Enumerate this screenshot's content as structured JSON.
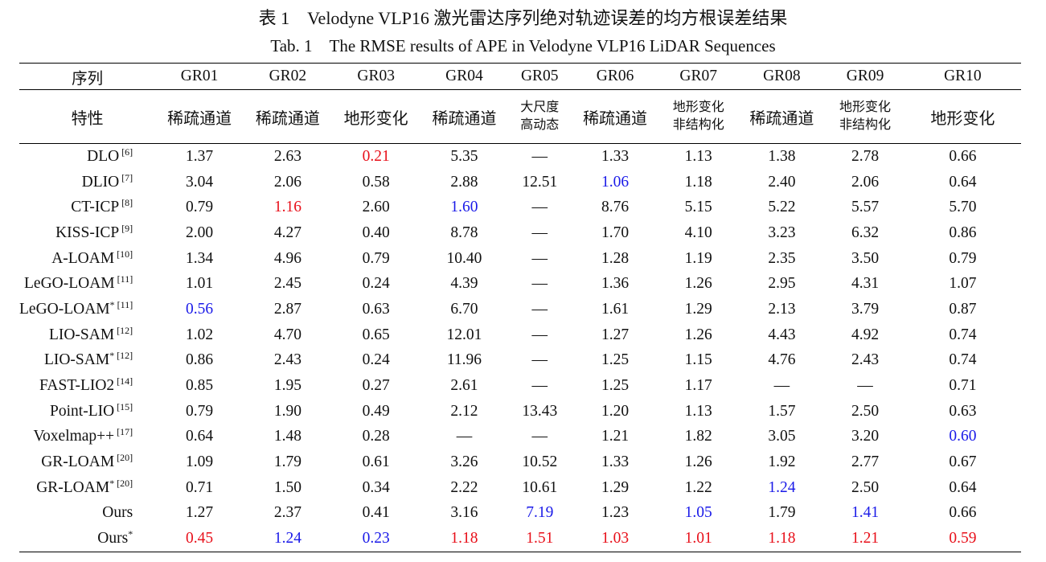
{
  "caption_cn": "表 1　Velodyne VLP16 激光雷达序列绝对轨迹误差的均方根误差结果",
  "caption_en": "Tab. 1　The RMSE results of APE in Velodyne VLP16 LiDAR Sequences",
  "header": {
    "row1_label": "序列",
    "sequences": [
      "GR01",
      "GR02",
      "GR03",
      "GR04",
      "GR05",
      "GR06",
      "GR07",
      "GR08",
      "GR09",
      "GR10"
    ],
    "row2_label": "特性",
    "properties": [
      [
        "稀疏通道"
      ],
      [
        "稀疏通道"
      ],
      [
        "地形变化"
      ],
      [
        "稀疏通道"
      ],
      [
        "大尺度",
        "高动态"
      ],
      [
        "稀疏通道"
      ],
      [
        "地形变化",
        "非结构化"
      ],
      [
        "稀疏通道"
      ],
      [
        "地形变化",
        "非结构化"
      ],
      [
        "地形变化"
      ]
    ]
  },
  "colors": {
    "best": "#e8101a",
    "second": "#1a1ae8"
  },
  "rows": [
    {
      "method": "DLO",
      "ref": "[6]",
      "values": [
        "1.37",
        "2.63",
        "0.21",
        "5.35",
        "—",
        "1.33",
        "1.13",
        "1.38",
        "2.78",
        "0.66"
      ],
      "marks": [
        "",
        "",
        "r",
        "",
        "",
        "",
        "",
        "",
        "",
        ""
      ]
    },
    {
      "method": "DLIO",
      "ref": "[7]",
      "values": [
        "3.04",
        "2.06",
        "0.58",
        "2.88",
        "12.51",
        "1.06",
        "1.18",
        "2.40",
        "2.06",
        "0.64"
      ],
      "marks": [
        "",
        "",
        "",
        "",
        "",
        "b",
        "",
        "",
        "",
        ""
      ]
    },
    {
      "method": "CT-ICP",
      "ref": "[8]",
      "values": [
        "0.79",
        "1.16",
        "2.60",
        "1.60",
        "—",
        "8.76",
        "5.15",
        "5.22",
        "5.57",
        "5.70"
      ],
      "marks": [
        "",
        "r",
        "",
        "b",
        "",
        "",
        "",
        "",
        "",
        ""
      ]
    },
    {
      "method": "KISS-ICP",
      "ref": "[9]",
      "values": [
        "2.00",
        "4.27",
        "0.40",
        "8.78",
        "—",
        "1.70",
        "4.10",
        "3.23",
        "6.32",
        "0.86"
      ],
      "marks": [
        "",
        "",
        "",
        "",
        "",
        "",
        "",
        "",
        "",
        ""
      ]
    },
    {
      "method": "A-LOAM",
      "ref": "[10]",
      "values": [
        "1.34",
        "4.96",
        "0.79",
        "10.40",
        "—",
        "1.28",
        "1.19",
        "2.35",
        "3.50",
        "0.79"
      ],
      "marks": [
        "",
        "",
        "",
        "",
        "",
        "",
        "",
        "",
        "",
        ""
      ]
    },
    {
      "method": "LeGO-LOAM",
      "ref": "[11]",
      "values": [
        "1.01",
        "2.45",
        "0.24",
        "4.39",
        "—",
        "1.36",
        "1.26",
        "2.95",
        "4.31",
        "1.07"
      ],
      "marks": [
        "",
        "",
        "",
        "",
        "",
        "",
        "",
        "",
        "",
        ""
      ]
    },
    {
      "method": "LeGO-LOAM*",
      "ref": "[11]",
      "values": [
        "0.56",
        "2.87",
        "0.63",
        "6.70",
        "—",
        "1.61",
        "1.29",
        "2.13",
        "3.79",
        "0.87"
      ],
      "marks": [
        "b",
        "",
        "",
        "",
        "",
        "",
        "",
        "",
        "",
        ""
      ]
    },
    {
      "method": "LIO-SAM",
      "ref": "[12]",
      "values": [
        "1.02",
        "4.70",
        "0.65",
        "12.01",
        "—",
        "1.27",
        "1.26",
        "4.43",
        "4.92",
        "0.74"
      ],
      "marks": [
        "",
        "",
        "",
        "",
        "",
        "",
        "",
        "",
        "",
        ""
      ]
    },
    {
      "method": "LIO-SAM*",
      "ref": "[12]",
      "values": [
        "0.86",
        "2.43",
        "0.24",
        "11.96",
        "—",
        "1.25",
        "1.15",
        "4.76",
        "2.43",
        "0.74"
      ],
      "marks": [
        "",
        "",
        "",
        "",
        "",
        "",
        "",
        "",
        "",
        ""
      ]
    },
    {
      "method": "FAST-LIO2",
      "ref": "[14]",
      "values": [
        "0.85",
        "1.95",
        "0.27",
        "2.61",
        "—",
        "1.25",
        "1.17",
        "—",
        "—",
        "0.71"
      ],
      "marks": [
        "",
        "",
        "",
        "",
        "",
        "",
        "",
        "",
        "",
        ""
      ]
    },
    {
      "method": "Point-LIO",
      "ref": "[15]",
      "values": [
        "0.79",
        "1.90",
        "0.49",
        "2.12",
        "13.43",
        "1.20",
        "1.13",
        "1.57",
        "2.50",
        "0.63"
      ],
      "marks": [
        "",
        "",
        "",
        "",
        "",
        "",
        "",
        "",
        "",
        ""
      ]
    },
    {
      "method": "Voxelmap++",
      "ref": "[17]",
      "values": [
        "0.64",
        "1.48",
        "0.28",
        "—",
        "—",
        "1.21",
        "1.82",
        "3.05",
        "3.20",
        "0.60"
      ],
      "marks": [
        "",
        "",
        "",
        "",
        "",
        "",
        "",
        "",
        "",
        "b"
      ]
    },
    {
      "method": "GR-LOAM",
      "ref": "[20]",
      "values": [
        "1.09",
        "1.79",
        "0.61",
        "3.26",
        "10.52",
        "1.33",
        "1.26",
        "1.92",
        "2.77",
        "0.67"
      ],
      "marks": [
        "",
        "",
        "",
        "",
        "",
        "",
        "",
        "",
        "",
        ""
      ]
    },
    {
      "method": "GR-LOAM*",
      "ref": "[20]",
      "values": [
        "0.71",
        "1.50",
        "0.34",
        "2.22",
        "10.61",
        "1.29",
        "1.22",
        "1.24",
        "2.50",
        "0.64"
      ],
      "marks": [
        "",
        "",
        "",
        "",
        "",
        "",
        "",
        "b",
        "",
        ""
      ]
    },
    {
      "method": "Ours",
      "ref": "",
      "values": [
        "1.27",
        "2.37",
        "0.41",
        "3.16",
        "7.19",
        "1.23",
        "1.05",
        "1.79",
        "1.41",
        "0.66"
      ],
      "marks": [
        "",
        "",
        "",
        "",
        "b",
        "",
        "b",
        "",
        "b",
        ""
      ]
    },
    {
      "method": "Ours*",
      "ref": "",
      "values": [
        "0.45",
        "1.24",
        "0.23",
        "1.18",
        "1.51",
        "1.03",
        "1.01",
        "1.18",
        "1.21",
        "0.59"
      ],
      "marks": [
        "r",
        "b",
        "b",
        "r",
        "r",
        "r",
        "r",
        "r",
        "r",
        "r"
      ]
    }
  ]
}
